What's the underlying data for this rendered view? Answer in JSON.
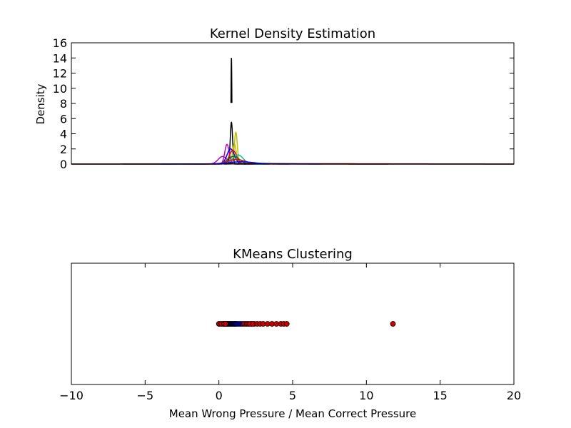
{
  "chart_data": [
    {
      "type": "line",
      "title": "Kernel Density Estimation",
      "xlabel": "",
      "ylabel": "Density",
      "xlim": [
        -10,
        20
      ],
      "ylim": [
        0,
        16
      ],
      "yticks": [
        0,
        2,
        4,
        6,
        8,
        10,
        12,
        14,
        16
      ],
      "xticks_visible": false,
      "grid": false,
      "legend": "none",
      "series": [
        {
          "color": "#000000",
          "peak_x": 0.85,
          "peak_y": 14.0,
          "sigma": 0.03,
          "base_y": 7.5
        },
        {
          "color": "#000000",
          "peak_x": 0.85,
          "peak_y": 5.5,
          "sigma": 0.08
        },
        {
          "color": "#bfbf00",
          "peak_x": 1.15,
          "peak_y": 4.2,
          "sigma": 0.1
        },
        {
          "color": "#bfbf00",
          "peak_x": 1.05,
          "peak_y": 2.7,
          "sigma": 0.12
        },
        {
          "color": "#bf00bf",
          "peak_x": 0.55,
          "peak_y": 2.6,
          "sigma": 0.15
        },
        {
          "color": "#bf00bf",
          "peak_x": 0.25,
          "peak_y": 1.0,
          "sigma": 0.3
        },
        {
          "color": "#0000ff",
          "peak_x": 0.8,
          "peak_y": 2.0,
          "sigma": 0.25
        },
        {
          "color": "#ff0000",
          "peak_x": 0.95,
          "peak_y": 1.8,
          "sigma": 0.25
        },
        {
          "color": "#00bfbf",
          "peak_x": 1.3,
          "peak_y": 1.2,
          "sigma": 0.35
        },
        {
          "color": "#008000",
          "peak_x": 1.0,
          "peak_y": 1.0,
          "sigma": 0.4
        },
        {
          "color": "#008000",
          "peak_x": 2.5,
          "peak_y": 0.1,
          "sigma": 1.5
        },
        {
          "color": "#ff0000",
          "peak_x": 1.2,
          "peak_y": 0.6,
          "sigma": 0.6
        },
        {
          "color": "#ff0000",
          "peak_x": 5.5,
          "peak_y": 0.05,
          "sigma": 6.0
        },
        {
          "color": "#000000",
          "peak_x": 3.0,
          "peak_y": 0.04,
          "sigma": 3.0
        },
        {
          "color": "#0000ff",
          "peak_x": 1.5,
          "peak_y": 0.3,
          "sigma": 0.9
        }
      ]
    },
    {
      "type": "scatter",
      "title": "KMeans Clustering",
      "xlabel": "Mean Wrong Pressure / Mean Correct Pressure",
      "ylabel": "",
      "xlim": [
        -10,
        20
      ],
      "xticks": [
        -10,
        -5,
        0,
        5,
        10,
        15,
        20
      ],
      "xtick_labels": [
        "−10",
        "−5",
        "0",
        "5",
        "10",
        "15",
        "20"
      ],
      "yticks_visible": false,
      "grid": false,
      "legend": "none",
      "clusters": [
        {
          "color": "#0000cc",
          "x": [
            0.3,
            0.4,
            0.5,
            0.55,
            0.6,
            0.65,
            0.7,
            0.75,
            0.8,
            0.85,
            0.9,
            0.95,
            1.0,
            1.05,
            1.1,
            1.15,
            1.2,
            1.3,
            1.4,
            1.5,
            1.6,
            2.2,
            2.4
          ]
        },
        {
          "color": "#cc0000",
          "x": [
            0.0,
            0.1,
            0.2,
            0.35,
            0.45,
            1.7,
            1.8,
            1.9,
            2.0,
            2.1,
            2.3,
            2.6,
            2.8,
            3.0,
            3.3,
            3.6,
            3.9,
            4.2,
            4.4,
            4.6,
            11.8
          ]
        }
      ]
    }
  ]
}
